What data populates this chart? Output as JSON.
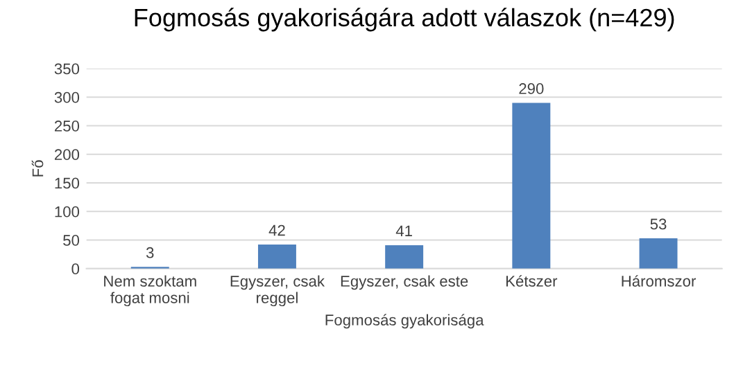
{
  "chart_data": {
    "type": "bar",
    "title": "Fogmosás gyakoriságára adott válaszok (n=429)",
    "xlabel": "Fogmosás gyakorisága",
    "ylabel": "Fő",
    "categories": [
      "Nem szoktam\nfogat mosni",
      "Egyszer, csak\nreggel",
      "Egyszer, csak este",
      "Kétszer",
      "Háromszor"
    ],
    "values": [
      3,
      42,
      41,
      290,
      53
    ],
    "color": "#4f81bd",
    "ylim": [
      0,
      350
    ],
    "yticks": [
      0,
      50,
      100,
      150,
      200,
      250,
      300,
      350
    ],
    "grid": "y",
    "data_labels": true
  }
}
